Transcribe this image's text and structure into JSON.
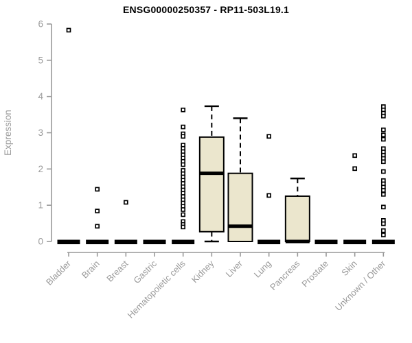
{
  "chart_data": {
    "type": "boxplot",
    "title": "ENSG00000250357 - RP11-503L19.1",
    "ylabel": "Expression",
    "xlabel": "",
    "ylim": [
      0,
      6
    ],
    "yticks": [
      0,
      1,
      2,
      3,
      4,
      5,
      6
    ],
    "grid": false,
    "legend": "none",
    "colors": {
      "box_fill": "#ebe6cd",
      "box_stroke": "#000000",
      "median": "#000000",
      "whisker": "#000000",
      "outlier_fill": "#ffffff",
      "outlier_stroke": "#000000",
      "axis": "#999999",
      "tick_label": "#9a9a9a",
      "title": "#000000",
      "background": "#ffffff"
    },
    "categories": [
      "Bladder",
      "Brain",
      "Breast",
      "Gastric",
      "Hematopoietic cells",
      "Kidney",
      "Liver",
      "Lung",
      "Pancreas",
      "Prostate",
      "Skin",
      "Unknown / Other"
    ],
    "series": [
      {
        "category": "Bladder",
        "whisker_low": 0,
        "q1": 0,
        "median": 0,
        "q3": 0,
        "whisker_high": 0,
        "outliers": [
          5.83
        ]
      },
      {
        "category": "Brain",
        "whisker_low": 0,
        "q1": 0,
        "median": 0,
        "q3": 0,
        "whisker_high": 0,
        "outliers": [
          1.44,
          0.84,
          0.42
        ]
      },
      {
        "category": "Breast",
        "whisker_low": 0,
        "q1": 0,
        "median": 0,
        "q3": 0,
        "whisker_high": 0,
        "outliers": [
          1.08
        ]
      },
      {
        "category": "Gastric",
        "whisker_low": 0,
        "q1": 0,
        "median": 0,
        "q3": 0,
        "whisker_high": 0,
        "outliers": []
      },
      {
        "category": "Hematopoietic cells",
        "whisker_low": 0,
        "q1": 0,
        "median": 0,
        "q3": 0,
        "whisker_high": 0,
        "outliers": [
          3.63,
          3.16,
          2.97,
          2.9,
          2.66,
          2.57,
          2.48,
          2.39,
          2.3,
          2.21,
          2.12,
          1.96,
          1.87,
          1.78,
          1.69,
          1.6,
          1.51,
          1.42,
          1.33,
          1.24,
          1.15,
          1.06,
          0.97,
          0.88,
          0.74,
          0.55,
          0.47,
          0.4
        ]
      },
      {
        "category": "Kidney",
        "whisker_low": 0,
        "q1": 0.27,
        "median": 1.88,
        "q3": 2.88,
        "whisker_high": 3.73,
        "outliers": []
      },
      {
        "category": "Liver",
        "whisker_low": 0,
        "q1": 0,
        "median": 0.42,
        "q3": 1.88,
        "whisker_high": 3.4,
        "outliers": []
      },
      {
        "category": "Lung",
        "whisker_low": 0,
        "q1": 0,
        "median": 0,
        "q3": 0,
        "whisker_high": 0,
        "outliers": [
          2.9,
          1.27
        ]
      },
      {
        "category": "Pancreas",
        "whisker_low": 0,
        "q1": 0,
        "median": 0,
        "q3": 1.25,
        "whisker_high": 1.74,
        "outliers": []
      },
      {
        "category": "Prostate",
        "whisker_low": 0,
        "q1": 0,
        "median": 0,
        "q3": 0,
        "whisker_high": 0,
        "outliers": []
      },
      {
        "category": "Skin",
        "whisker_low": 0,
        "q1": 0,
        "median": 0,
        "q3": 0,
        "whisker_high": 0,
        "outliers": [
          2.37,
          2.01
        ]
      },
      {
        "category": "Unknown / Other",
        "whisker_low": 0,
        "q1": 0,
        "median": 0,
        "q3": 0,
        "whisker_high": 0,
        "outliers": [
          3.72,
          3.63,
          3.54,
          3.46,
          3.08,
          2.94,
          2.82,
          2.56,
          2.47,
          2.38,
          2.29,
          2.2,
          1.93,
          1.68,
          1.59,
          1.5,
          1.41,
          1.3,
          0.95,
          0.58,
          0.49,
          0.3,
          0.18
        ]
      }
    ]
  }
}
